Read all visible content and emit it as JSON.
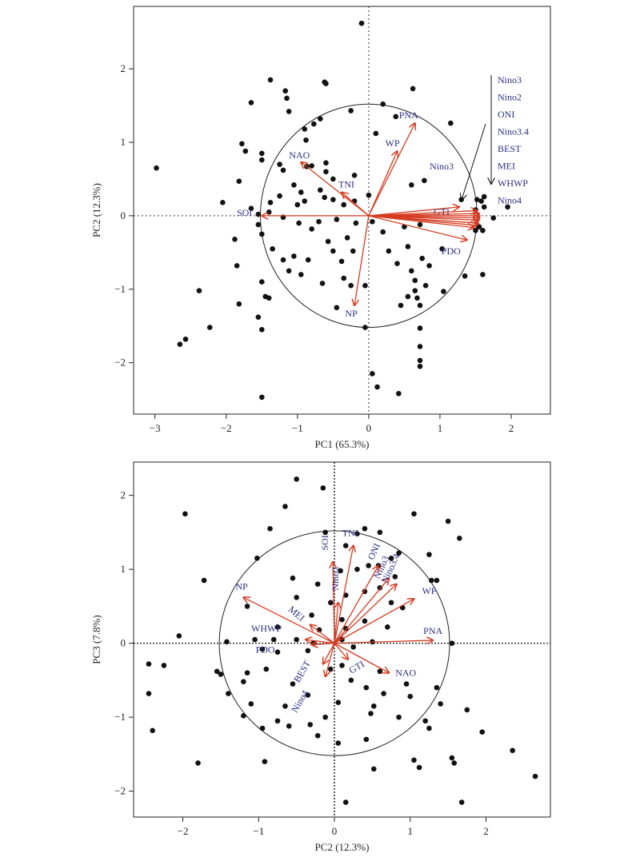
{
  "colors": {
    "arrow": "#d53a20",
    "label": "#2b2e86",
    "point": "#111111",
    "frame": "#222222"
  },
  "chart_data": [
    {
      "type": "scatter",
      "subtype": "pca-biplot",
      "xlabel": "PC1 (65.3%)",
      "ylabel": "PC2 (12.3%)",
      "xlim": [
        -3.3,
        2.55
      ],
      "ylim": [
        -2.7,
        2.85
      ],
      "xticks": [
        -3,
        -2,
        -1,
        0,
        1,
        2
      ],
      "yticks": [
        -2,
        -1,
        0,
        1,
        2
      ],
      "circle_radius": 1.52,
      "reference_lines": "dotted lines at x=0 and y=0",
      "points": [
        [
          -0.1,
          2.62
        ],
        [
          -1.38,
          1.85
        ],
        [
          -1.17,
          1.7
        ],
        [
          -0.6,
          1.8
        ],
        [
          -0.62,
          1.82
        ],
        [
          -0.25,
          1.43
        ],
        [
          -1.15,
          1.6
        ],
        [
          0.2,
          1.52
        ],
        [
          0.38,
          1.35
        ],
        [
          0.62,
          1.73
        ],
        [
          1.15,
          1.26
        ],
        [
          -1.12,
          1.42
        ],
        [
          -0.77,
          1.25
        ],
        [
          -0.68,
          1.32
        ],
        [
          -1.65,
          1.54
        ],
        [
          -0.9,
          1.18
        ],
        [
          0.1,
          1.12
        ],
        [
          -0.88,
          1.03
        ],
        [
          -1.78,
          0.98
        ],
        [
          -1.73,
          0.88
        ],
        [
          -2.98,
          0.65
        ],
        [
          -1.5,
          0.85
        ],
        [
          -1.5,
          0.76
        ],
        [
          -1.25,
          0.7
        ],
        [
          -0.87,
          0.67
        ],
        [
          -0.6,
          0.72
        ],
        [
          -0.6,
          0.6
        ],
        [
          -0.8,
          0.68
        ],
        [
          -1.2,
          0.62
        ],
        [
          -0.5,
          0.5
        ],
        [
          -1.05,
          0.42
        ],
        [
          -0.2,
          0.55
        ],
        [
          0.6,
          0.42
        ],
        [
          0.78,
          0.48
        ],
        [
          -1.82,
          0.47
        ],
        [
          -1.25,
          0.27
        ],
        [
          -0.95,
          0.32
        ],
        [
          -0.68,
          0.35
        ],
        [
          -0.9,
          0.2
        ],
        [
          -1.0,
          0.15
        ],
        [
          -1.38,
          0.18
        ],
        [
          -0.62,
          0.25
        ],
        [
          -0.5,
          0.22
        ],
        [
          -0.35,
          0.15
        ],
        [
          -0.2,
          0.2
        ],
        [
          0.0,
          0.28
        ],
        [
          -2.05,
          0.18
        ],
        [
          -1.65,
          0.1
        ],
        [
          -1.4,
          0.05
        ],
        [
          -1.55,
          0.02
        ],
        [
          -1.2,
          -0.02
        ],
        [
          -0.98,
          -0.1
        ],
        [
          -0.7,
          -0.08
        ],
        [
          -0.45,
          -0.05
        ],
        [
          -0.18,
          -0.1
        ],
        [
          0.05,
          -0.08
        ],
        [
          -1.55,
          -0.12
        ],
        [
          -1.5,
          -0.25
        ],
        [
          -1.88,
          -0.32
        ],
        [
          -0.8,
          -0.18
        ],
        [
          -0.57,
          -0.35
        ],
        [
          -0.3,
          -0.3
        ],
        [
          0.2,
          -0.22
        ],
        [
          0.5,
          -0.15
        ],
        [
          0.72,
          -0.12
        ],
        [
          -1.35,
          -0.45
        ],
        [
          -1.05,
          -0.55
        ],
        [
          -0.5,
          -0.48
        ],
        [
          -0.22,
          -0.48
        ],
        [
          0.28,
          -0.48
        ],
        [
          0.55,
          -0.42
        ],
        [
          1.03,
          -0.45
        ],
        [
          0.75,
          -0.58
        ],
        [
          -1.2,
          -0.6
        ],
        [
          -0.85,
          -0.6
        ],
        [
          -0.38,
          -0.62
        ],
        [
          0.4,
          -0.65
        ],
        [
          0.85,
          -0.68
        ],
        [
          1.35,
          -0.82
        ],
        [
          -1.85,
          -0.68
        ],
        [
          -1.12,
          -0.75
        ],
        [
          -0.95,
          -0.8
        ],
        [
          -0.35,
          -0.85
        ],
        [
          0.6,
          -0.75
        ],
        [
          0.65,
          -0.88
        ],
        [
          1.6,
          -0.8
        ],
        [
          -1.5,
          -0.9
        ],
        [
          -0.65,
          -0.92
        ],
        [
          -0.25,
          -0.95
        ],
        [
          -0.05,
          -0.95
        ],
        [
          0.8,
          -0.95
        ],
        [
          0.65,
          -1.02
        ],
        [
          1.05,
          -1.03
        ],
        [
          -2.38,
          -1.02
        ],
        [
          -1.45,
          -1.1
        ],
        [
          -1.4,
          -1.12
        ],
        [
          0.55,
          -1.1
        ],
        [
          0.68,
          -1.12
        ],
        [
          -1.82,
          -1.2
        ],
        [
          0.72,
          -1.22
        ],
        [
          0.45,
          -1.22
        ],
        [
          -0.45,
          -1.25
        ],
        [
          -1.55,
          -1.38
        ],
        [
          -0.05,
          -1.52
        ],
        [
          -2.23,
          -1.52
        ],
        [
          -1.5,
          -1.55
        ],
        [
          0.72,
          -1.53
        ],
        [
          -2.57,
          -1.68
        ],
        [
          -2.65,
          -1.75
        ],
        [
          0.72,
          -1.78
        ],
        [
          0.72,
          -2.05
        ],
        [
          0.72,
          -1.97
        ],
        [
          0.05,
          -2.15
        ],
        [
          0.12,
          -2.33
        ],
        [
          0.42,
          -2.42
        ],
        [
          -1.5,
          -2.47
        ],
        [
          1.3,
          0.22
        ],
        [
          1.62,
          0.26
        ],
        [
          1.52,
          0.22
        ],
        [
          1.58,
          0.2
        ],
        [
          1.95,
          0.12
        ],
        [
          1.62,
          0.12
        ],
        [
          1.5,
          0.08
        ],
        [
          1.75,
          -0.03
        ],
        [
          1.55,
          -0.15
        ],
        [
          1.6,
          -0.2
        ],
        [
          1.5,
          -0.2
        ]
      ],
      "arrows": [
        {
          "label": "SOI",
          "x": -1.5,
          "y": 0.0
        },
        {
          "label": "NAO",
          "x": -0.95,
          "y": 0.73
        },
        {
          "label": "TNI",
          "x": -0.38,
          "y": 0.32
        },
        {
          "label": "PNA",
          "x": 0.65,
          "y": 1.26
        },
        {
          "label": "WP",
          "x": 0.4,
          "y": 0.88
        },
        {
          "label": "NP",
          "x": -0.2,
          "y": -1.22
        },
        {
          "label": "GTI",
          "x": 1.27,
          "y": 0.12
        },
        {
          "label": "PDO",
          "x": 1.38,
          "y": -0.33
        },
        {
          "label": "Nino3",
          "x": 1.52,
          "y": 0.07
        },
        {
          "label": "Nino2",
          "x": 1.55,
          "y": 0.03
        },
        {
          "label": "ONI",
          "x": 1.56,
          "y": 0.0
        },
        {
          "label": "Nino3.4",
          "x": 1.56,
          "y": -0.03
        },
        {
          "label": "BEST",
          "x": 1.55,
          "y": -0.06
        },
        {
          "label": "MEI",
          "x": 1.54,
          "y": -0.1
        },
        {
          "label": "WHWP",
          "x": 1.52,
          "y": -0.13
        },
        {
          "label": "Nino4",
          "x": 1.48,
          "y": -0.16
        }
      ],
      "annotations": {
        "list_labels": [
          "Nino3",
          "Nino2",
          "ONI",
          "Nino3.4",
          "BEST",
          "MEI",
          "WHWP",
          "Nino4"
        ],
        "inside_label": "Nino3"
      }
    },
    {
      "type": "scatter",
      "subtype": "pca-biplot",
      "xlabel": "PC2 (12.3%)",
      "ylabel": "PC3 (7.8%)",
      "xlim": [
        -2.65,
        2.85
      ],
      "ylim": [
        -2.35,
        2.45
      ],
      "xticks": [
        -2,
        -1,
        0,
        1,
        2
      ],
      "yticks": [
        -2,
        -1,
        0,
        1,
        2
      ],
      "circle_radius": 1.52,
      "reference_lines": "dotted lines at x=0 and y=0",
      "points": [
        [
          -0.5,
          2.22
        ],
        [
          -0.15,
          2.1
        ],
        [
          -0.65,
          1.85
        ],
        [
          -1.97,
          1.75
        ],
        [
          1.05,
          1.75
        ],
        [
          1.5,
          1.65
        ],
        [
          0.4,
          1.55
        ],
        [
          -0.12,
          1.5
        ],
        [
          0.3,
          1.48
        ],
        [
          0.6,
          1.5
        ],
        [
          -0.85,
          1.55
        ],
        [
          1.65,
          1.42
        ],
        [
          0.15,
          1.32
        ],
        [
          -1.02,
          1.15
        ],
        [
          0.45,
          1.05
        ],
        [
          0.85,
          1.22
        ],
        [
          1.25,
          1.2
        ],
        [
          0.75,
          1.15
        ],
        [
          0.58,
          1.05
        ],
        [
          0.3,
          1.0
        ],
        [
          -1.72,
          0.85
        ],
        [
          -0.55,
          0.88
        ],
        [
          0.08,
          0.98
        ],
        [
          0.8,
          0.9
        ],
        [
          1.28,
          0.85
        ],
        [
          1.35,
          0.85
        ],
        [
          -0.22,
          0.8
        ],
        [
          0.6,
          0.75
        ],
        [
          0.4,
          0.7
        ],
        [
          0.15,
          0.65
        ],
        [
          -0.5,
          0.62
        ],
        [
          -0.05,
          0.55
        ],
        [
          -1.15,
          0.5
        ],
        [
          0.75,
          0.55
        ],
        [
          0.9,
          0.48
        ],
        [
          -0.3,
          0.38
        ],
        [
          0.1,
          0.32
        ],
        [
          0.4,
          0.3
        ],
        [
          -0.75,
          0.22
        ],
        [
          -0.2,
          0.18
        ],
        [
          0.15,
          0.2
        ],
        [
          0.7,
          0.22
        ],
        [
          -2.05,
          0.1
        ],
        [
          -1.05,
          0.05
        ],
        [
          -0.8,
          0.05
        ],
        [
          -0.5,
          0.05
        ],
        [
          -0.28,
          0.0
        ],
        [
          0.1,
          0.05
        ],
        [
          0.5,
          0.02
        ],
        [
          1.55,
          0.0
        ],
        [
          -1.42,
          0.02
        ],
        [
          -0.95,
          -0.08
        ],
        [
          -0.75,
          -0.12
        ],
        [
          -0.35,
          -0.1
        ],
        [
          0.25,
          -0.05
        ],
        [
          -2.45,
          -0.28
        ],
        [
          -2.25,
          -0.3
        ],
        [
          -1.55,
          -0.38
        ],
        [
          -1.5,
          -0.42
        ],
        [
          -1.15,
          -0.4
        ],
        [
          -0.9,
          -0.35
        ],
        [
          -0.05,
          -0.35
        ],
        [
          0.1,
          -0.3
        ],
        [
          0.6,
          -0.38
        ],
        [
          -1.2,
          -0.52
        ],
        [
          -0.55,
          -0.55
        ],
        [
          0.22,
          -0.5
        ],
        [
          0.42,
          -0.6
        ],
        [
          0.95,
          -0.55
        ],
        [
          1.35,
          -0.6
        ],
        [
          -2.45,
          -0.68
        ],
        [
          -1.4,
          -0.68
        ],
        [
          -0.35,
          -0.7
        ],
        [
          0.65,
          -0.68
        ],
        [
          1.0,
          -0.72
        ],
        [
          -1.1,
          -0.82
        ],
        [
          -0.65,
          -0.85
        ],
        [
          0.05,
          -0.8
        ],
        [
          0.52,
          -0.85
        ],
        [
          1.4,
          -0.82
        ],
        [
          1.75,
          -0.9
        ],
        [
          -1.2,
          -0.98
        ],
        [
          -0.75,
          -1.05
        ],
        [
          -0.12,
          -1.0
        ],
        [
          0.48,
          -0.95
        ],
        [
          0.85,
          -1.0
        ],
        [
          1.2,
          -1.05
        ],
        [
          -2.4,
          -1.18
        ],
        [
          -0.95,
          -1.15
        ],
        [
          -0.6,
          -1.12
        ],
        [
          -0.32,
          -1.1
        ],
        [
          1.25,
          -1.15
        ],
        [
          1.95,
          -1.2
        ],
        [
          -0.22,
          -1.25
        ],
        [
          0.42,
          -1.3
        ],
        [
          0.05,
          -1.35
        ],
        [
          2.35,
          -1.45
        ],
        [
          -0.92,
          -1.6
        ],
        [
          -1.8,
          -1.62
        ],
        [
          1.05,
          -1.58
        ],
        [
          1.55,
          -1.55
        ],
        [
          1.58,
          -1.62
        ],
        [
          1.12,
          -1.68
        ],
        [
          0.52,
          -1.7
        ],
        [
          2.65,
          -1.8
        ],
        [
          0.15,
          -2.15
        ],
        [
          1.68,
          -2.15
        ]
      ],
      "arrows": [
        {
          "label": "TNI",
          "x": 0.25,
          "y": 1.32
        },
        {
          "label": "SOI",
          "x": -0.02,
          "y": 1.1
        },
        {
          "label": "ONI",
          "x": 0.58,
          "y": 1.05
        },
        {
          "label": "Nino3",
          "x": 0.72,
          "y": 0.88
        },
        {
          "label": "Nino3.4",
          "x": 0.82,
          "y": 0.8
        },
        {
          "label": "Nino2",
          "x": 0.05,
          "y": 0.55
        },
        {
          "label": "WP",
          "x": 1.05,
          "y": 0.6
        },
        {
          "label": "PNA",
          "x": 1.3,
          "y": 0.04
        },
        {
          "label": "NAO",
          "x": 0.72,
          "y": -0.4
        },
        {
          "label": "GTI",
          "x": 0.18,
          "y": -0.22
        },
        {
          "label": "NP",
          "x": -1.2,
          "y": 0.62
        },
        {
          "label": "MEI",
          "x": -0.32,
          "y": 0.25
        },
        {
          "label": "WHWP",
          "x": -0.38,
          "y": 0.05
        },
        {
          "label": "PDO",
          "x": -0.3,
          "y": -0.02
        },
        {
          "label": "BEST",
          "x": -0.15,
          "y": -0.28
        },
        {
          "label": "Nino4",
          "x": -0.12,
          "y": -0.45
        }
      ]
    }
  ]
}
